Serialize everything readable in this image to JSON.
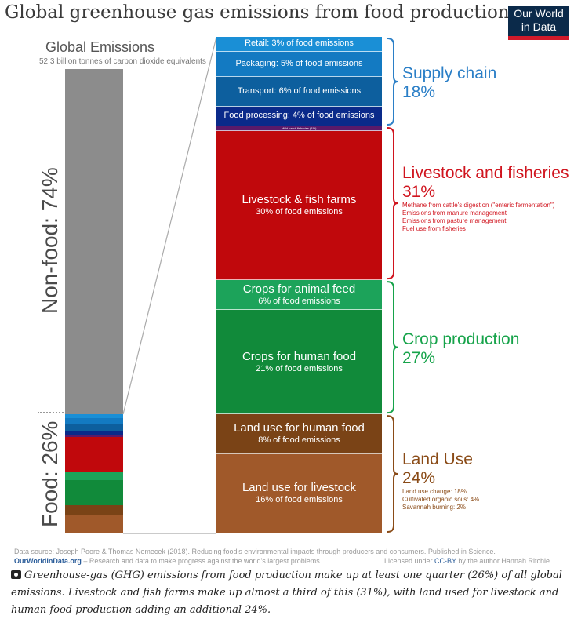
{
  "title": "Global greenhouse gas emissions from food production",
  "logo": {
    "line1": "Our World",
    "line2": "in Data"
  },
  "global": {
    "title": "Global Emissions",
    "subtitle": "52.3 billion tonnes of carbon dioxide equivalents",
    "nonfood_label": "Non-food: 74%",
    "food_label": "Food: 26%"
  },
  "chart_data": {
    "type": "bar",
    "title": "Global greenhouse gas emissions from food production",
    "global_split": [
      {
        "name": "Non-food",
        "value": 74
      },
      {
        "name": "Food",
        "value": 26
      }
    ],
    "segments": [
      {
        "label": "Retail",
        "pct_text": "3% of food emissions",
        "value": 3,
        "color": "#1a8fd6",
        "inline": "Retail: 3% of food emissions"
      },
      {
        "label": "Packaging",
        "pct_text": "5% of food emissions",
        "value": 5,
        "color": "#137ac2",
        "inline": "Packaging: 5% of food emissions"
      },
      {
        "label": "Transport",
        "pct_text": "6% of food emissions",
        "value": 6,
        "color": "#0d5f9e",
        "inline": "Transport: 6% of food emissions"
      },
      {
        "label": "Food processing",
        "pct_text": "4% of food emissions",
        "value": 4,
        "color": "#0a2a8a",
        "inline": "Food processing: 4% of food emissions"
      },
      {
        "label": "Wild catch fisheries",
        "pct_text": "1%",
        "value": 1,
        "color": "#5a1a6a",
        "inline": "Wild catch fisheries (1%)"
      },
      {
        "label": "Livestock & fish farms",
        "pct_text": "30% of food emissions",
        "value": 30,
        "color": "#c0080c"
      },
      {
        "label": "Crops for animal feed",
        "pct_text": "6% of food emissions",
        "value": 6,
        "color": "#1ca35a"
      },
      {
        "label": "Crops for human food",
        "pct_text": "21% of food emissions",
        "value": 21,
        "color": "#118a3a"
      },
      {
        "label": "Land use for human food",
        "pct_text": "8% of food emissions",
        "value": 8,
        "color": "#7a4316"
      },
      {
        "label": "Land use for livestock",
        "pct_text": "16% of food emissions",
        "value": 16,
        "color": "#a0592a"
      }
    ],
    "groups": [
      {
        "name": "Supply chain",
        "pct": "18%",
        "color": "#2b7fc7",
        "details": []
      },
      {
        "name": "Livestock and fisheries",
        "pct": "31%",
        "color": "#d0141e",
        "details": [
          "Methane from cattle's digestion (\"enteric fermentation\")",
          "Emissions from manure management",
          "Emissions from pasture management",
          "Fuel use from fisheries"
        ]
      },
      {
        "name": "Crop production",
        "pct": "27%",
        "color": "#16a34a",
        "details": []
      },
      {
        "name": "Land Use",
        "pct": "24%",
        "color": "#8a4b17",
        "details": [
          "Land use change: 18%",
          "Cultivated organic soils: 4%",
          "Savannah burning: 2%"
        ]
      }
    ]
  },
  "source": {
    "line1": "Data source: Joseph Poore & Thomas Nemecek (2018). Reducing food's environmental impacts through producers and consumers. Published in Science.",
    "owid": "OurWorldinData.org",
    "line2_rest": " – Research and data to make progress against the world's largest problems.",
    "license_pre": "Licensed under ",
    "license_cc": "CC-BY",
    "license_post": " by the author Hannah Ritchie."
  },
  "caption": "Greenhouse-gas (GHG) emissions from food production make up at least one quarter (26%) of all global emissions. Livestock and fish farms make up almost a third of this (31%), with land used for livestock and human food production adding an additional 24%."
}
